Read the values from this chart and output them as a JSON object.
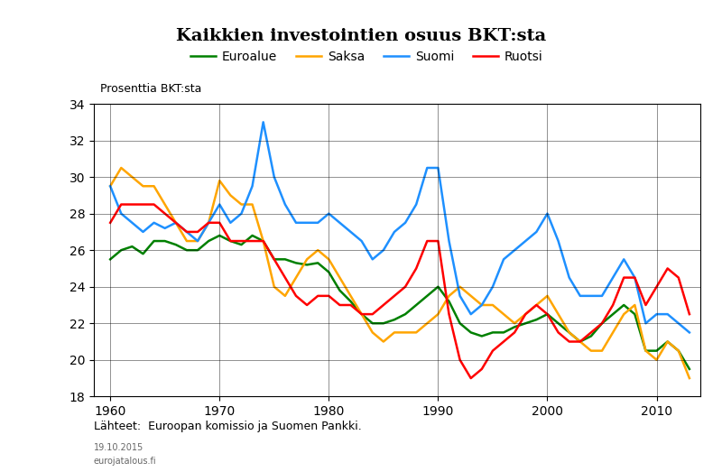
{
  "title": "Kaikkien investointien osuus BKT:sta",
  "ylabel": "Prosenttia BKT:sta",
  "xlabel_note": "Lähteet:  Euroopan komissio ja Suomen Pankki.",
  "date_note": "19.10.2015",
  "url_note": "eurojatalous.fi",
  "ylim": [
    18,
    34
  ],
  "yticks": [
    18,
    20,
    22,
    24,
    26,
    28,
    30,
    32,
    34
  ],
  "xlim": [
    1958.5,
    2014
  ],
  "xticks": [
    1960,
    1970,
    1980,
    1990,
    2000,
    2010
  ],
  "legend_labels": [
    "Euroalue",
    "Saksa",
    "Suomi",
    "Ruotsi"
  ],
  "colors": {
    "euroalue": "#008000",
    "saksa": "#FFA500",
    "suomi": "#1E90FF",
    "ruotsi": "#FF0000"
  },
  "euroalue": {
    "years": [
      1960,
      1961,
      1962,
      1963,
      1964,
      1965,
      1966,
      1967,
      1968,
      1969,
      1970,
      1971,
      1972,
      1973,
      1974,
      1975,
      1976,
      1977,
      1978,
      1979,
      1980,
      1981,
      1982,
      1983,
      1984,
      1985,
      1986,
      1987,
      1988,
      1989,
      1990,
      1991,
      1992,
      1993,
      1994,
      1995,
      1996,
      1997,
      1998,
      1999,
      2000,
      2001,
      2002,
      2003,
      2004,
      2005,
      2006,
      2007,
      2008,
      2009,
      2010,
      2011,
      2012,
      2013
    ],
    "values": [
      25.5,
      26.0,
      26.2,
      25.8,
      26.5,
      26.5,
      26.3,
      26.0,
      26.0,
      26.5,
      26.8,
      26.5,
      26.3,
      26.8,
      26.5,
      25.5,
      25.5,
      25.3,
      25.2,
      25.3,
      24.8,
      23.8,
      23.2,
      22.5,
      22.0,
      22.0,
      22.2,
      22.5,
      23.0,
      23.5,
      24.0,
      23.2,
      22.0,
      21.5,
      21.3,
      21.5,
      21.5,
      21.8,
      22.0,
      22.2,
      22.5,
      22.0,
      21.5,
      21.0,
      21.3,
      22.0,
      22.5,
      23.0,
      22.5,
      20.5,
      20.5,
      21.0,
      20.5,
      19.5
    ]
  },
  "saksa": {
    "years": [
      1960,
      1961,
      1962,
      1963,
      1964,
      1965,
      1966,
      1967,
      1968,
      1969,
      1970,
      1971,
      1972,
      1973,
      1974,
      1975,
      1976,
      1977,
      1978,
      1979,
      1980,
      1981,
      1982,
      1983,
      1984,
      1985,
      1986,
      1987,
      1988,
      1989,
      1990,
      1991,
      1992,
      1993,
      1994,
      1995,
      1996,
      1997,
      1998,
      1999,
      2000,
      2001,
      2002,
      2003,
      2004,
      2005,
      2006,
      2007,
      2008,
      2009,
      2010,
      2011,
      2012,
      2013
    ],
    "values": [
      29.5,
      30.5,
      30.0,
      29.5,
      29.5,
      28.5,
      27.5,
      26.5,
      26.5,
      27.5,
      29.8,
      29.0,
      28.5,
      28.5,
      26.5,
      24.0,
      23.5,
      24.5,
      25.5,
      26.0,
      25.5,
      24.5,
      23.5,
      22.5,
      21.5,
      21.0,
      21.5,
      21.5,
      21.5,
      22.0,
      22.5,
      23.5,
      24.0,
      23.5,
      23.0,
      23.0,
      22.5,
      22.0,
      22.5,
      23.0,
      23.5,
      22.5,
      21.5,
      21.0,
      20.5,
      20.5,
      21.5,
      22.5,
      23.0,
      20.5,
      20.0,
      21.0,
      20.5,
      19.0
    ]
  },
  "suomi": {
    "years": [
      1960,
      1961,
      1962,
      1963,
      1964,
      1965,
      1966,
      1967,
      1968,
      1969,
      1970,
      1971,
      1972,
      1973,
      1974,
      1975,
      1976,
      1977,
      1978,
      1979,
      1980,
      1981,
      1982,
      1983,
      1984,
      1985,
      1986,
      1987,
      1988,
      1989,
      1990,
      1991,
      1992,
      1993,
      1994,
      1995,
      1996,
      1997,
      1998,
      1999,
      2000,
      2001,
      2002,
      2003,
      2004,
      2005,
      2006,
      2007,
      2008,
      2009,
      2010,
      2011,
      2012,
      2013
    ],
    "values": [
      29.5,
      28.0,
      27.5,
      27.0,
      27.5,
      27.2,
      27.5,
      27.0,
      26.5,
      27.5,
      28.5,
      27.5,
      28.0,
      29.5,
      33.0,
      30.0,
      28.5,
      27.5,
      27.5,
      27.5,
      28.0,
      27.5,
      27.0,
      26.5,
      25.5,
      26.0,
      27.0,
      27.5,
      28.5,
      30.5,
      30.5,
      26.5,
      23.5,
      22.5,
      23.0,
      24.0,
      25.5,
      26.0,
      26.5,
      27.0,
      28.0,
      26.5,
      24.5,
      23.5,
      23.5,
      23.5,
      24.5,
      25.5,
      24.5,
      22.0,
      22.5,
      22.5,
      22.0,
      21.5
    ]
  },
  "ruotsi": {
    "years": [
      1960,
      1961,
      1962,
      1963,
      1964,
      1965,
      1966,
      1967,
      1968,
      1969,
      1970,
      1971,
      1972,
      1973,
      1974,
      1975,
      1976,
      1977,
      1978,
      1979,
      1980,
      1981,
      1982,
      1983,
      1984,
      1985,
      1986,
      1987,
      1988,
      1989,
      1990,
      1991,
      1992,
      1993,
      1994,
      1995,
      1996,
      1997,
      1998,
      1999,
      2000,
      2001,
      2002,
      2003,
      2004,
      2005,
      2006,
      2007,
      2008,
      2009,
      2010,
      2011,
      2012,
      2013
    ],
    "values": [
      27.5,
      28.5,
      28.5,
      28.5,
      28.5,
      28.0,
      27.5,
      27.0,
      27.0,
      27.5,
      27.5,
      26.5,
      26.5,
      26.5,
      26.5,
      25.5,
      24.5,
      23.5,
      23.0,
      23.5,
      23.5,
      23.0,
      23.0,
      22.5,
      22.5,
      23.0,
      23.5,
      24.0,
      25.0,
      26.5,
      26.5,
      22.5,
      20.0,
      19.0,
      19.5,
      20.5,
      21.0,
      21.5,
      22.5,
      23.0,
      22.5,
      21.5,
      21.0,
      21.0,
      21.5,
      22.0,
      23.0,
      24.5,
      24.5,
      23.0,
      24.0,
      25.0,
      24.5,
      22.5
    ]
  }
}
